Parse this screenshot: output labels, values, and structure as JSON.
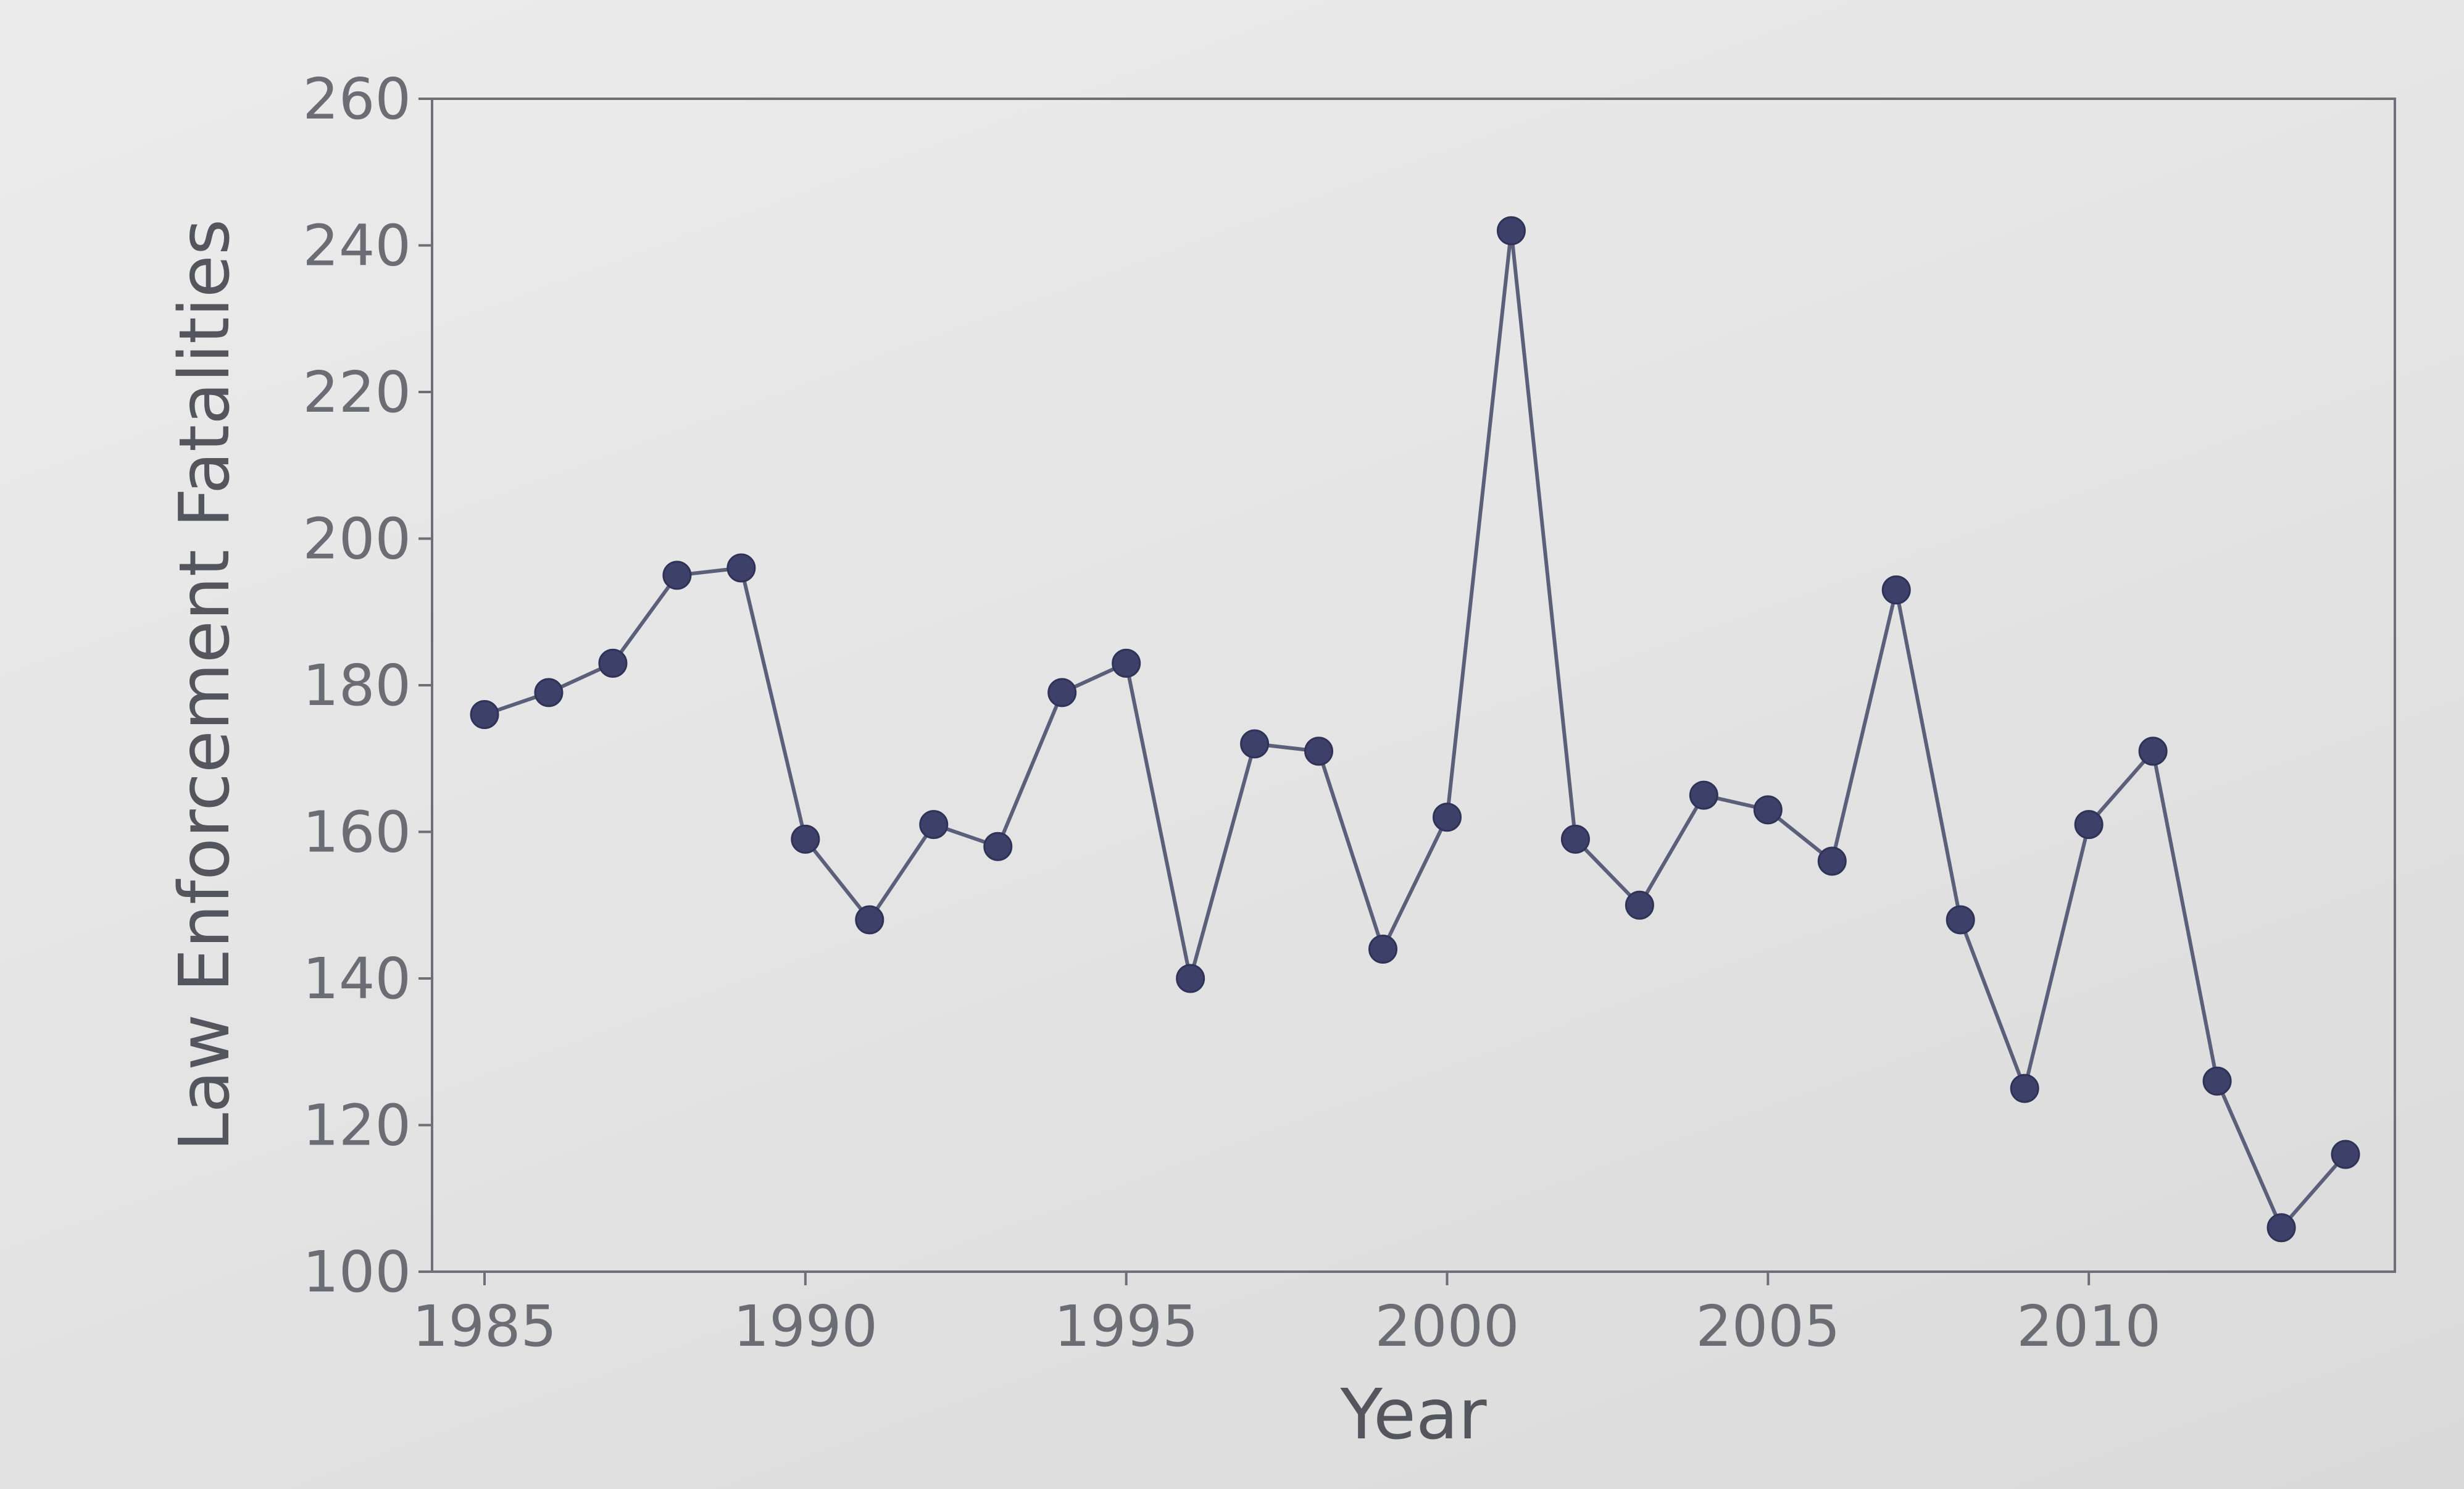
{
  "chart_data": {
    "type": "line",
    "title": "",
    "xlabel": "Year",
    "ylabel": "Law Enforcement Fatalities",
    "xlim": [
      1985,
      2014
    ],
    "ylim": [
      100,
      260
    ],
    "x_ticks": [
      1985,
      1990,
      1995,
      2000,
      2005,
      2010
    ],
    "y_ticks": [
      100,
      120,
      140,
      160,
      180,
      200,
      220,
      240,
      260
    ],
    "grid": false,
    "legend": "none",
    "series": [
      {
        "color": "#4a4f7c",
        "x": [
          1985,
          1986,
          1987,
          1988,
          1989,
          1990,
          1991,
          1992,
          1993,
          1994,
          1995,
          1996,
          1997,
          1998,
          1999,
          2000,
          2001,
          2002,
          2003,
          2004,
          2005,
          2006,
          2007,
          2008,
          2009,
          2010,
          2011,
          2012,
          2013,
          2014
        ],
        "y": [
          176,
          179,
          183,
          195,
          196,
          159,
          148,
          161,
          158,
          179,
          183,
          140,
          172,
          171,
          144,
          162,
          242,
          159,
          150,
          165,
          163,
          156,
          193,
          148,
          125,
          161,
          171,
          126,
          106,
          116
        ]
      }
    ]
  },
  "colors": {
    "plot_frame": "#6f6f78",
    "line": "#5c5f7a",
    "marker": "#3d416a"
  }
}
